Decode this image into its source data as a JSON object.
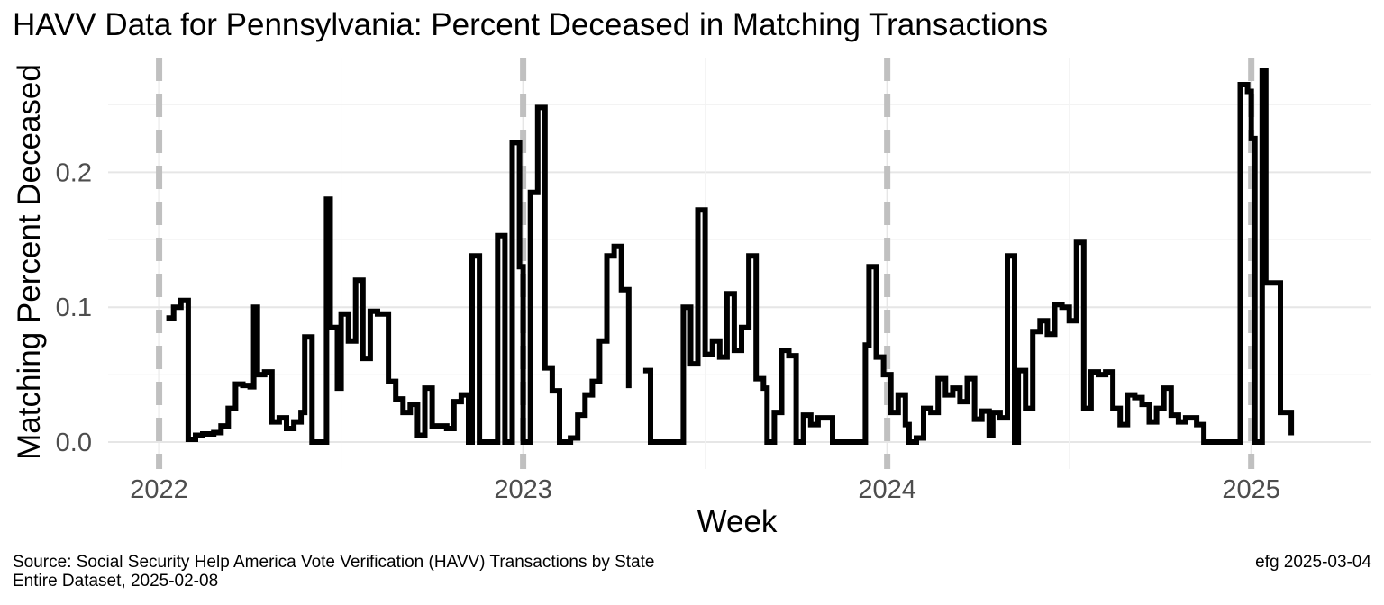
{
  "header": {
    "title": "HAVV Data for Pennsylvania:  Percent Deceased in Matching Transactions"
  },
  "footer": {
    "source_line1": "Source:  Social Security Help America Vote Verification (HAVV) Transactions by State",
    "source_line2": "Entire Dataset, 2025-02-08",
    "credit": "efg 2025-03-04"
  },
  "chart_data": {
    "type": "line",
    "title": "HAVV Data for Pennsylvania:  Percent Deceased in Matching Transactions",
    "xlabel": "Week",
    "ylabel": "Matching Percent Deceased",
    "x_ticks": [
      "2022",
      "2023",
      "2024",
      "2025"
    ],
    "y_ticks": [
      "0.0",
      "0.1",
      "0.2"
    ],
    "xlim": [
      2021.86,
      2025.33
    ],
    "ylim": [
      -0.02,
      0.285
    ],
    "grid": true,
    "vlines": [
      2022,
      2023,
      2024,
      2025
    ],
    "series": [
      {
        "line_style": "step",
        "color": "#000000",
        "segments": [
          [
            [
              2022.02,
              0.092
            ],
            [
              2022.04,
              0.1
            ],
            [
              2022.06,
              0.105
            ],
            [
              2022.08,
              0.002
            ],
            [
              2022.1,
              0.005
            ],
            [
              2022.12,
              0.006
            ],
            [
              2022.15,
              0.007
            ],
            [
              2022.17,
              0.012
            ],
            [
              2022.19,
              0.025
            ],
            [
              2022.21,
              0.043
            ],
            [
              2022.23,
              0.042
            ],
            [
              2022.25,
              0.041
            ],
            [
              2022.26,
              0.1
            ],
            [
              2022.27,
              0.05
            ],
            [
              2022.29,
              0.052
            ],
            [
              2022.31,
              0.015
            ],
            [
              2022.33,
              0.018
            ],
            [
              2022.35,
              0.01
            ],
            [
              2022.37,
              0.015
            ],
            [
              2022.39,
              0.022
            ],
            [
              2022.4,
              0.078
            ],
            [
              2022.42,
              0.0
            ],
            [
              2022.43,
              0.0
            ],
            [
              2022.46,
              0.18
            ],
            [
              2022.47,
              0.085
            ],
            [
              2022.49,
              0.04
            ],
            [
              2022.5,
              0.095
            ],
            [
              2022.52,
              0.075
            ],
            [
              2022.54,
              0.12
            ],
            [
              2022.56,
              0.062
            ],
            [
              2022.58,
              0.097
            ],
            [
              2022.6,
              0.095
            ],
            [
              2022.63,
              0.045
            ],
            [
              2022.65,
              0.032
            ],
            [
              2022.67,
              0.022
            ],
            [
              2022.69,
              0.028
            ],
            [
              2022.71,
              0.005
            ],
            [
              2022.73,
              0.04
            ],
            [
              2022.75,
              0.012
            ],
            [
              2022.77,
              0.012
            ],
            [
              2022.79,
              0.01
            ],
            [
              2022.81,
              0.03
            ],
            [
              2022.83,
              0.035
            ],
            [
              2022.85,
              0.0
            ],
            [
              2022.86,
              0.138
            ],
            [
              2022.88,
              0.0
            ],
            [
              2022.93,
              0.153
            ],
            [
              2022.95,
              0.0
            ],
            [
              2022.97,
              0.222
            ],
            [
              2022.99,
              0.13
            ],
            [
              2023.0,
              0.0
            ],
            [
              2023.02,
              0.185
            ],
            [
              2023.04,
              0.248
            ],
            [
              2023.06,
              0.055
            ],
            [
              2023.08,
              0.038
            ],
            [
              2023.1,
              0.0
            ],
            [
              2023.13,
              0.003
            ],
            [
              2023.15,
              0.02
            ],
            [
              2023.17,
              0.035
            ],
            [
              2023.19,
              0.045
            ],
            [
              2023.21,
              0.075
            ],
            [
              2023.23,
              0.138
            ],
            [
              2023.25,
              0.145
            ],
            [
              2023.27,
              0.113
            ],
            [
              2023.29,
              0.04
            ]
          ],
          [
            [
              2023.33,
              0.053
            ],
            [
              2023.35,
              0.0
            ],
            [
              2023.42,
              0.0
            ],
            [
              2023.44,
              0.1
            ],
            [
              2023.46,
              0.058
            ],
            [
              2023.48,
              0.172
            ],
            [
              2023.5,
              0.065
            ],
            [
              2023.52,
              0.075
            ],
            [
              2023.54,
              0.063
            ],
            [
              2023.56,
              0.11
            ],
            [
              2023.58,
              0.068
            ],
            [
              2023.6,
              0.085
            ],
            [
              2023.62,
              0.138
            ],
            [
              2023.64,
              0.047
            ],
            [
              2023.66,
              0.04
            ],
            [
              2023.67,
              0.0
            ],
            [
              2023.69,
              0.022
            ],
            [
              2023.71,
              0.068
            ],
            [
              2023.73,
              0.064
            ],
            [
              2023.75,
              0.0
            ],
            [
              2023.77,
              0.02
            ],
            [
              2023.79,
              0.013
            ],
            [
              2023.81,
              0.018
            ],
            [
              2023.83,
              0.018
            ],
            [
              2023.85,
              0.0
            ],
            [
              2023.94,
              0.072
            ],
            [
              2023.95,
              0.13
            ],
            [
              2023.97,
              0.063
            ],
            [
              2023.99,
              0.05
            ],
            [
              2024.01,
              0.022
            ],
            [
              2024.03,
              0.035
            ],
            [
              2024.05,
              0.013
            ],
            [
              2024.06,
              0.0
            ],
            [
              2024.08,
              0.003
            ],
            [
              2024.1,
              0.025
            ],
            [
              2024.12,
              0.022
            ],
            [
              2024.14,
              0.047
            ],
            [
              2024.16,
              0.035
            ],
            [
              2024.18,
              0.04
            ],
            [
              2024.2,
              0.03
            ],
            [
              2024.22,
              0.047
            ],
            [
              2024.24,
              0.017
            ],
            [
              2024.26,
              0.023
            ],
            [
              2024.28,
              0.005
            ],
            [
              2024.29,
              0.022
            ],
            [
              2024.31,
              0.018
            ],
            [
              2024.33,
              0.138
            ],
            [
              2024.35,
              0.0
            ],
            [
              2024.36,
              0.053
            ],
            [
              2024.38,
              0.025
            ],
            [
              2024.4,
              0.082
            ],
            [
              2024.42,
              0.09
            ],
            [
              2024.44,
              0.08
            ],
            [
              2024.46,
              0.102
            ],
            [
              2024.48,
              0.1
            ],
            [
              2024.5,
              0.09
            ],
            [
              2024.52,
              0.148
            ],
            [
              2024.54,
              0.025
            ],
            [
              2024.56,
              0.052
            ],
            [
              2024.58,
              0.05
            ],
            [
              2024.6,
              0.052
            ],
            [
              2024.62,
              0.025
            ],
            [
              2024.64,
              0.013
            ],
            [
              2024.66,
              0.035
            ],
            [
              2024.68,
              0.033
            ],
            [
              2024.7,
              0.028
            ],
            [
              2024.72,
              0.015
            ],
            [
              2024.74,
              0.025
            ],
            [
              2024.76,
              0.04
            ],
            [
              2024.78,
              0.02
            ],
            [
              2024.8,
              0.015
            ],
            [
              2024.82,
              0.018
            ],
            [
              2024.85,
              0.013
            ],
            [
              2024.87,
              0.0
            ],
            [
              2024.97,
              0.265
            ],
            [
              2024.99,
              0.26
            ],
            [
              2025.0,
              0.225
            ],
            [
              2025.01,
              0.0
            ],
            [
              2025.03,
              0.275
            ],
            [
              2025.04,
              0.118
            ],
            [
              2025.06,
              0.118
            ],
            [
              2025.08,
              0.022
            ],
            [
              2025.1,
              0.022
            ],
            [
              2025.11,
              0.005
            ]
          ]
        ]
      }
    ]
  }
}
